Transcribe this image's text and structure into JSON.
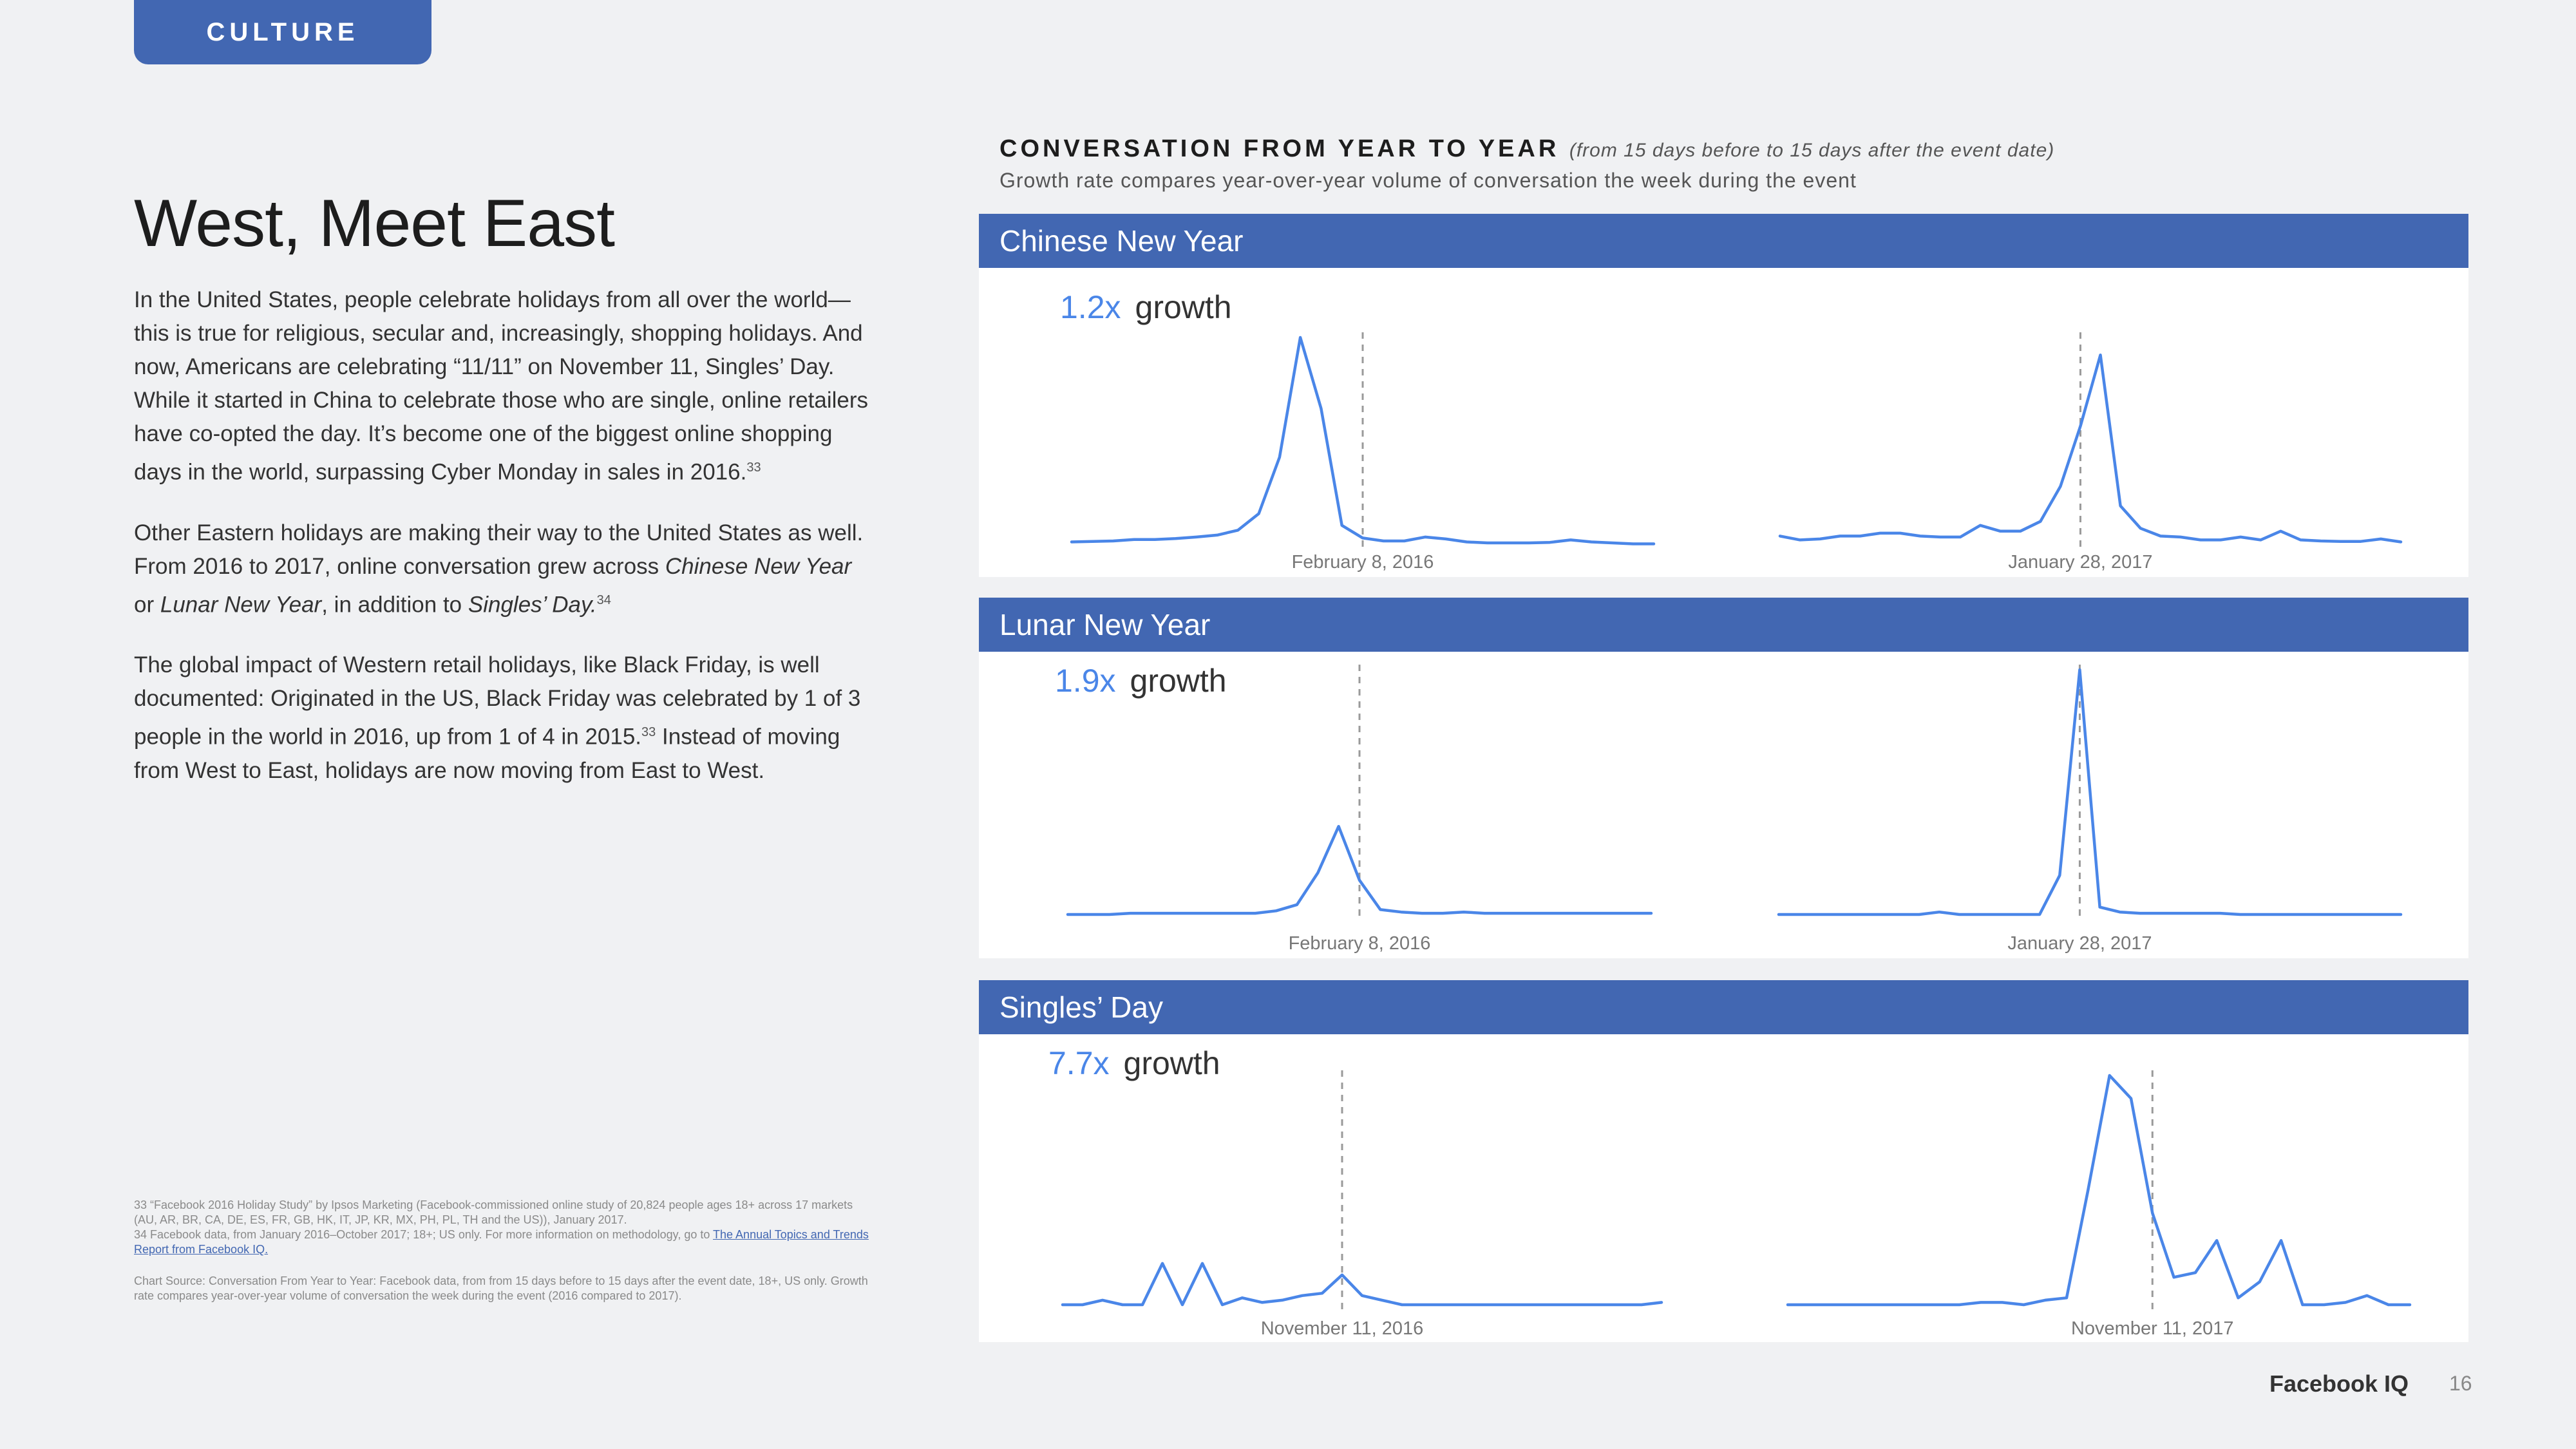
{
  "header": {
    "section_tag": "CULTURE"
  },
  "article": {
    "title": "West, Meet East",
    "p1": "In the United States, people celebrate holidays from all over the world—this is true for religious, secular and, increasingly, shopping holidays. And now, Americans are celebrating “11/11” on November 11, Singles’ Day. While it started in China to celebrate those who are single, online retailers have co-opted the day. It’s become one of the biggest online shopping days in the world, surpassing Cyber Monday in sales in 2016.",
    "p1_ref": "33",
    "p2_a": "Other Eastern holidays are making their way to the United States as well. From 2016 to 2017, online conversation grew across ",
    "p2_em1": "Chinese New Year",
    "p2_b": " or ",
    "p2_em2": "Lunar New Year",
    "p2_c": ", in addition to ",
    "p2_em3": "Singles’ Day.",
    "p2_ref": "34",
    "p3_a": "The global impact of Western retail holidays, like Black Friday, is well documented: Originated in the US, Black Friday was celebrated by 1 of 3 people in the world in 2016, up from 1 of 4 in 2015.",
    "p3_ref": "33",
    "p3_b": " Instead of moving from West to East, holidays are now moving from East to West."
  },
  "footnotes": {
    "note33": "33  “Facebook 2016 Holiday Study” by Ipsos Marketing (Facebook-commissioned online study of 20,824 people ages 18+ across 17 markets (AU, AR, BR, CA, DE, ES, FR, GB, HK, IT, JP, KR, MX, PH, PL, TH and the US)), January 2017.",
    "note34": "34  Facebook data, from January 2016–October 2017; 18+; US only. For more information on methodology, go to ",
    "note34_link": "The Annual Topics and Trends Report from Facebook IQ.",
    "chart_source": "Chart Source:  Conversation From Year to Year: Facebook data, from from 15 days before to 15 days after the event date, 18+, US only. Growth rate compares year-over-year volume of conversation the week during the event (2016 compared to 2017)."
  },
  "chart_header": {
    "title": "CONVERSATION FROM YEAR TO YEAR",
    "title_note": "(from 15 days before to 15 days after the event date)",
    "subtitle": "Growth rate compares year-over-year volume of conversation the week during the event"
  },
  "growth_word": "growth",
  "colors": {
    "brand_blue": "#4267b2",
    "line_blue": "#4a86e8",
    "background": "#f0f1f3"
  },
  "chart_data": [
    {
      "type": "line",
      "title": "Chinese New Year",
      "growth_label": "1.2x",
      "y_unit": "relative conversation volume (0–100)",
      "series": [
        {
          "name": "2016",
          "event_label": "February 8, 2016",
          "event_index": 14,
          "values": [
            3,
            3.5,
            4,
            5.5,
            5.5,
            6.5,
            8,
            10,
            15,
            32,
            90,
            213,
            140,
            20,
            7,
            4,
            4,
            8,
            6,
            3,
            2,
            2,
            2,
            2.5,
            5,
            3,
            2,
            1,
            1
          ]
        },
        {
          "name": "2017",
          "event_label": "January 28, 2017",
          "event_index": 15,
          "values": [
            9,
            5,
            6,
            9,
            9,
            12,
            12,
            9,
            8,
            8,
            20,
            14,
            14,
            24,
            60,
            122,
            195,
            40,
            17,
            9,
            8,
            5,
            5,
            8,
            5,
            14,
            5,
            4,
            3.5,
            3.5,
            6,
            3
          ]
        }
      ]
    },
    {
      "type": "line",
      "title": "Lunar New Year",
      "growth_label": "1.9x",
      "y_unit": "relative conversation volume (0–100)",
      "series": [
        {
          "name": "2016",
          "event_label": "February 8, 2016",
          "event_index": 14,
          "values": [
            0,
            0,
            0,
            0.5,
            0.5,
            0.5,
            0.5,
            0.5,
            0.5,
            0.5,
            1.5,
            4,
            17,
            36,
            14,
            2,
            1,
            0.5,
            0.5,
            1,
            0.5,
            0.5,
            0.5,
            0.5,
            0.5,
            0.5,
            0.5,
            0.5,
            0.5
          ]
        },
        {
          "name": "2017",
          "event_label": "January 28, 2017",
          "event_index": 15,
          "values": [
            0,
            0,
            0,
            0,
            0,
            0,
            0,
            0,
            1,
            0,
            0,
            0,
            0,
            0,
            16,
            100,
            3,
            1,
            0.5,
            0.5,
            0.5,
            0.5,
            0.5,
            0,
            0,
            0,
            0,
            0,
            0,
            0,
            0,
            0
          ]
        }
      ]
    },
    {
      "type": "line",
      "title": "Singles’ Day",
      "growth_label": "7.7x",
      "y_unit": "relative conversation volume (0–100)",
      "series": [
        {
          "name": "2016",
          "event_label": "November 11, 2016",
          "event_index": 14,
          "values": [
            0,
            0,
            2,
            0,
            0,
            18,
            0,
            18,
            0,
            3,
            1,
            2,
            4,
            5,
            13,
            4,
            2,
            0,
            0,
            0,
            0,
            0,
            0,
            0,
            0,
            0,
            0,
            0,
            0,
            0,
            1
          ]
        },
        {
          "name": "2017",
          "event_label": "November 11, 2017",
          "event_index": 17,
          "values": [
            0,
            0,
            0,
            0,
            0,
            0,
            0,
            0,
            0,
            1,
            1,
            0,
            2,
            3,
            50,
            100,
            90,
            40,
            12,
            14,
            28,
            3,
            10,
            28,
            0,
            0,
            1,
            4,
            0,
            0
          ]
        }
      ]
    }
  ],
  "footer": {
    "brand": "Facebook IQ",
    "page_number": "16"
  }
}
